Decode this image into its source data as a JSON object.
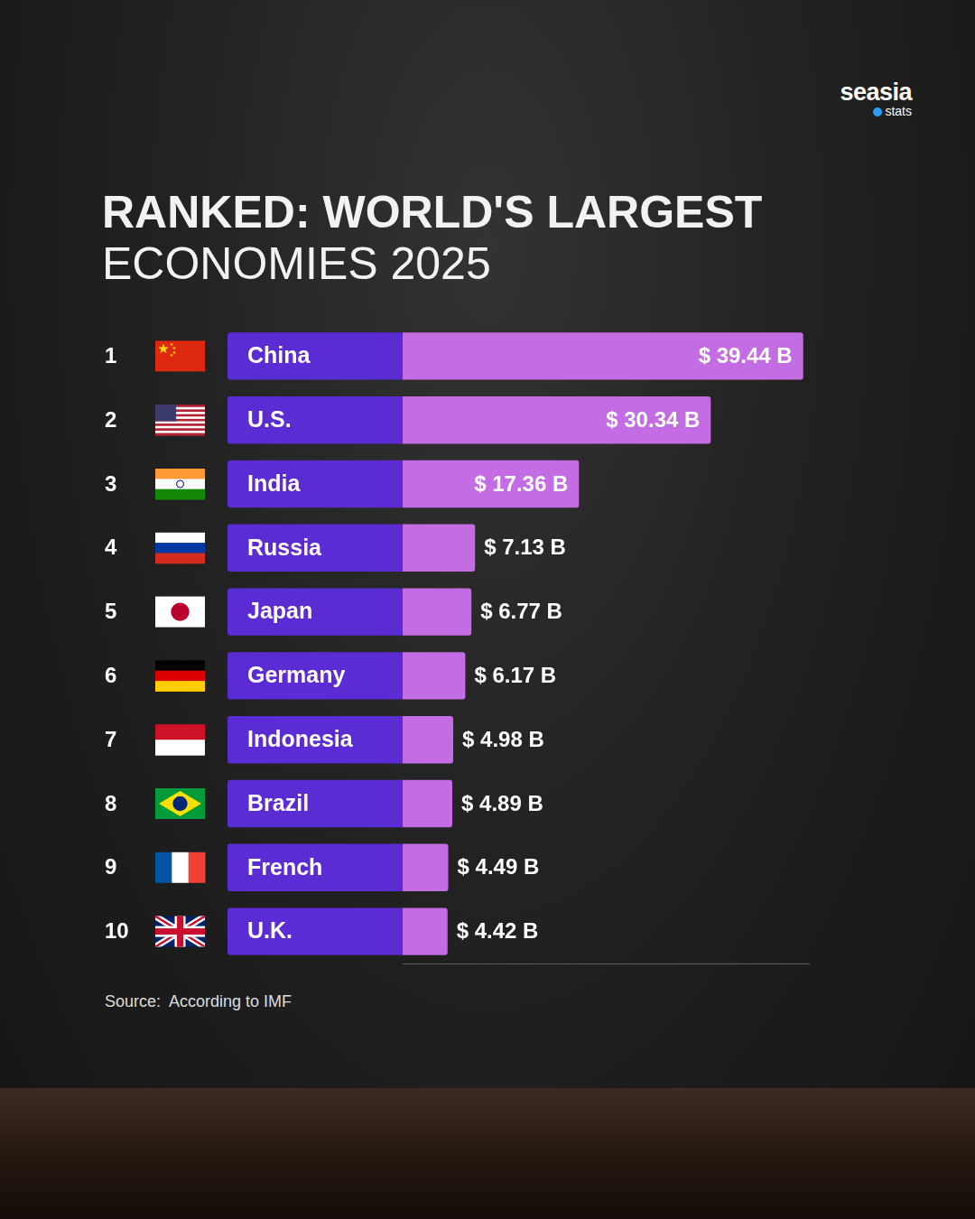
{
  "chart_data": {
    "type": "bar",
    "title": "RANKED: WORLD'S LARGEST",
    "subtitle": "ECONOMIES 2025",
    "source": "Source:  According to IMF",
    "brand": "seasia",
    "brand_tag": "stats",
    "ranks": [
      1,
      2,
      3,
      4,
      5,
      6,
      7,
      8,
      9,
      10
    ],
    "categories": [
      "China",
      "U.S.",
      "India",
      "Russia",
      "Japan",
      "Germany",
      "Indonesia",
      "Brazil",
      "French",
      "U.K."
    ],
    "values": [
      39.44,
      30.34,
      17.36,
      7.13,
      6.77,
      6.17,
      4.98,
      4.89,
      4.49,
      4.42
    ],
    "value_labels": [
      "$ 39.44 B",
      "$ 30.34 B",
      "$ 17.36 B",
      "$ 7.13 B",
      "$ 6.77 B",
      "$ 6.17 B",
      "$ 4.98 B",
      "$ 4.89 B",
      "$ 4.49 B",
      "$ 4.42 B"
    ],
    "color": "#c46ce3",
    "orientation": "horizontal",
    "data_labels": true,
    "grid": false,
    "tick_labels": false,
    "xlim": [
      0,
      40
    ]
  }
}
